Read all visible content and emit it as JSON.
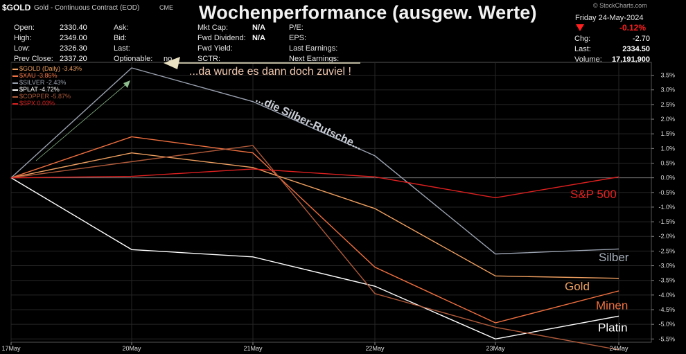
{
  "header": {
    "ticker": "$GOLD",
    "contract": "Gold - Continuous Contract (EOD)",
    "exchange": "CME",
    "title": "Wochenperformance (ausgew. Werte)",
    "brand": "© StockCharts.com",
    "date": "Friday  24-May-2024",
    "change_pct": "-0.12%",
    "change_pct_color": "#ff2020",
    "quote": [
      {
        "label": "Open:",
        "value": "2330.40"
      },
      {
        "label": "High:",
        "value": "2349.00"
      },
      {
        "label": "Low:",
        "value": "2326.30"
      },
      {
        "label": "Prev Close:",
        "value": "2337.20"
      }
    ],
    "col2": [
      "Ask:",
      "Bid:",
      "Last:",
      "Optionable:"
    ],
    "optionable_value": "no",
    "col3": [
      {
        "label": "Mkt Cap:",
        "value": ""
      },
      {
        "label": "Fwd Dividend:",
        "value": "N/A"
      },
      {
        "label": "Fwd Yield:",
        "value": "N/A"
      },
      {
        "label": "SCTR:",
        "value": ""
      }
    ],
    "col4": [
      "P/E:",
      "EPS:",
      "Last Earnings:",
      "Next Earnings:"
    ],
    "right": [
      {
        "label": "Chg:",
        "value": "-2.70"
      },
      {
        "label": "Last:",
        "value": "2334.50"
      },
      {
        "label": "Volume:",
        "value": "17,191,900"
      }
    ]
  },
  "chart_data": {
    "type": "line",
    "categories": [
      "17May",
      "20May",
      "21May",
      "22May",
      "23May",
      "24May"
    ],
    "ylim": [
      -5.8,
      3.75
    ],
    "yticks": [
      "3.5%",
      "3.0%",
      "2.5%",
      "2.0%",
      "1.5%",
      "1.0%",
      "0.5%",
      "0.0%",
      "-0.5%",
      "-1.0%",
      "-1.5%",
      "-2.0%",
      "-2.5%",
      "-3.0%",
      "-3.5%",
      "-4.0%",
      "-4.5%",
      "-5.0%",
      "-5.5%"
    ],
    "grid": true,
    "legend_position": "top-left",
    "series": [
      {
        "name": "$GOLD (Daily) -3.43%",
        "color": "#f0a060",
        "values": [
          0,
          0.85,
          0.35,
          -1.05,
          -3.35,
          -3.43
        ]
      },
      {
        "name": "$XAU -3.86%",
        "color": "#f07040",
        "values": [
          0,
          1.4,
          0.85,
          -3.05,
          -4.95,
          -3.86
        ]
      },
      {
        "name": "$SILVER -2.43%",
        "color": "#9aa2b0",
        "values": [
          0,
          3.75,
          2.6,
          0.75,
          -2.6,
          -2.43
        ]
      },
      {
        "name": "$PLAT -4.72%",
        "color": "#ffffff",
        "values": [
          0,
          -2.45,
          -2.7,
          -3.7,
          -5.5,
          -4.72
        ]
      },
      {
        "name": "$COPPER -5.87%",
        "color": "#b05a3a",
        "values": [
          0,
          0.55,
          1.1,
          -3.95,
          -5.1,
          -5.87
        ]
      },
      {
        "name": "$SPX 0.03%",
        "color": "#e02020",
        "values": [
          0,
          0.05,
          0.3,
          0.03,
          -0.68,
          0.03
        ]
      }
    ],
    "annotations": [
      "...da wurde es dann doch zuviel !",
      "...die Silber-Rutsche..."
    ],
    "end_labels": [
      {
        "text": "S&P 500",
        "color": "#ee2020",
        "value": -0.55
      },
      {
        "text": "Silber",
        "color": "#a8b0bc",
        "value": -2.7
      },
      {
        "text": "Gold",
        "color": "#f0a060",
        "value": -3.7
      },
      {
        "text": "Minen",
        "color": "#f07040",
        "value": -4.35
      },
      {
        "text": "Platin",
        "color": "#ffffff",
        "value": -5.1
      }
    ]
  }
}
